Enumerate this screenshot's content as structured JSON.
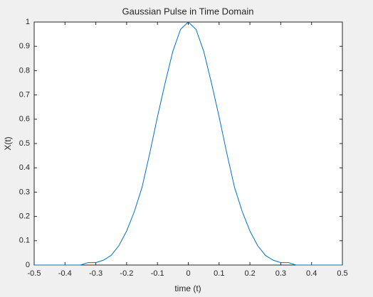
{
  "chart_data": {
    "type": "line",
    "title": "Gaussian Pulse in Time Domain",
    "x_label": "time (t)",
    "y_label": "X(t)",
    "x": [
      -0.5,
      -0.475,
      -0.45,
      -0.425,
      -0.4,
      -0.375,
      -0.35,
      -0.325,
      -0.3,
      -0.275,
      -0.25,
      -0.225,
      -0.2,
      -0.175,
      -0.15,
      -0.125,
      -0.1,
      -0.075,
      -0.05,
      -0.025,
      0,
      0.025,
      0.05,
      0.075,
      0.1,
      0.125,
      0.15,
      0.175,
      0.2,
      0.225,
      0.25,
      0.275,
      0.3,
      0.325,
      0.35,
      0.375,
      0.4,
      0.425,
      0.45,
      0.475,
      0.5
    ],
    "series": [
      {
        "color": "#0072bd",
        "values": [
          0,
          0,
          0,
          0,
          0,
          0,
          0,
          0.01,
          0.01,
          0.02,
          0.04,
          0.08,
          0.14,
          0.22,
          0.32,
          0.46,
          0.61,
          0.75,
          0.88,
          0.97,
          1,
          0.97,
          0.88,
          0.75,
          0.61,
          0.46,
          0.32,
          0.22,
          0.14,
          0.08,
          0.04,
          0.02,
          0.01,
          0.01,
          0,
          0,
          0,
          0,
          0,
          0,
          0
        ]
      }
    ],
    "xlim": [
      -0.5,
      0.5
    ],
    "xticks": [
      -0.5,
      -0.4,
      -0.3,
      -0.2,
      -0.1,
      0,
      0.1,
      0.2,
      0.3,
      0.4,
      0.5
    ],
    "ylim": [
      0,
      1
    ],
    "yticks": [
      0,
      0.1,
      0.2,
      0.3,
      0.4,
      0.5,
      0.6,
      0.7,
      0.8,
      0.9,
      1
    ]
  }
}
